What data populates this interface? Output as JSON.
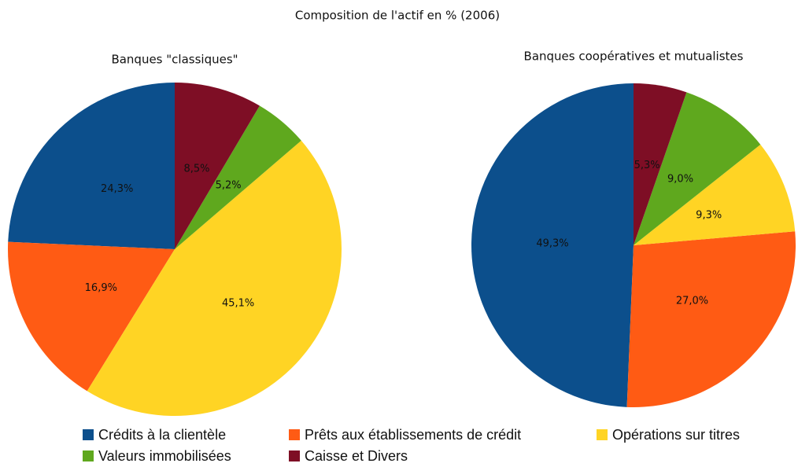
{
  "title": "Composition de l'actif en % (2006)",
  "legend": {
    "labels": [
      "Crédits à la clientèle",
      "Prêts aux établissements de crédit",
      "Opérations sur titres",
      "Valeurs immobilisées",
      "Caisse et Divers"
    ],
    "colors": [
      "#0c4f8c",
      "#ff5b14",
      "#ffd424",
      "#5fa81e",
      "#7e0e25"
    ]
  },
  "chart_data": [
    {
      "type": "pie",
      "title": "Banques \"classiques\"",
      "values": [
        24.3,
        16.9,
        45.1,
        5.2,
        8.5
      ],
      "value_labels": [
        "24,3%",
        "16,9%",
        "45,1%",
        "5,2%",
        "8,5%"
      ]
    },
    {
      "type": "pie",
      "title": "Banques coopératives et mutualistes",
      "values": [
        49.3,
        27.0,
        9.3,
        9.0,
        5.3
      ],
      "value_labels": [
        "49,3%",
        "27,0%",
        "9,3%",
        "9,0%",
        "5,3%"
      ]
    }
  ]
}
